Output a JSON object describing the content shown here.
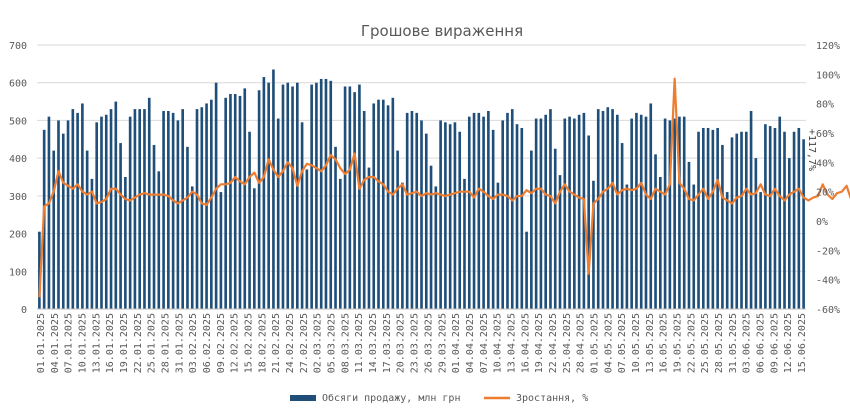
{
  "chart_data": {
    "type": "bar+line",
    "title": "Грошове  вираження",
    "x_tick_labels": [
      "01.01.2025",
      "04.01.2025",
      "07.01.2025",
      "10.01.2025",
      "13.01.2025",
      "16.01.2025",
      "19.01.2025",
      "22.01.2025",
      "25.01.2025",
      "28.01.2025",
      "31.01.2025",
      "03.02.2025",
      "06.02.2025",
      "09.02.2025",
      "12.02.2025",
      "15.02.2025",
      "18.02.2025",
      "21.02.2025",
      "24.02.2025",
      "27.02.2025",
      "02.03.2025",
      "05.03.2025",
      "08.03.2025",
      "11.03.2025",
      "14.03.2025",
      "17.03.2025",
      "20.03.2025",
      "23.03.2025",
      "26.03.2025",
      "29.03.2025",
      "01.04.2025",
      "04.04.2025",
      "07.04.2025",
      "10.04.2025",
      "13.04.2025",
      "16.04.2025",
      "19.04.2025",
      "22.04.2025",
      "25.04.2025",
      "28.04.2025",
      "01.05.2025",
      "04.05.2025",
      "07.05.2025",
      "10.05.2025",
      "13.05.2025",
      "16.05.2025",
      "19.05.2025",
      "22.05.2025",
      "25.05.2025",
      "28.05.2025",
      "31.05.2025",
      "03.06.2025",
      "06.06.2025",
      "09.06.2025",
      "12.06.2025",
      "15.06.2025"
    ],
    "y_left": {
      "min": 0,
      "max": 700,
      "step": 100,
      "ticks": [
        "0",
        "100",
        "200",
        "300",
        "400",
        "500",
        "600",
        "700"
      ]
    },
    "y_right": {
      "min": -60,
      "max": 120,
      "step": 20,
      "ticks": [
        "-60%",
        "-40%",
        "-20%",
        "0%",
        "20%",
        "40%",
        "60%",
        "80%",
        "100%",
        "120%"
      ]
    },
    "series": [
      {
        "name": "Обсяги  продажу,  млн  грн",
        "kind": "bar",
        "color": "#1f4e79",
        "values": [
          205,
          475,
          510,
          420,
          500,
          465,
          500,
          530,
          520,
          545,
          420,
          345,
          495,
          510,
          515,
          530,
          550,
          440,
          350,
          510,
          530,
          530,
          530,
          560,
          435,
          365,
          525,
          525,
          520,
          500,
          530,
          430,
          325,
          530,
          535,
          545,
          555,
          600,
          310,
          560,
          570,
          570,
          565,
          585,
          470,
          320,
          580,
          615,
          600,
          635,
          505,
          595,
          600,
          590,
          600,
          495,
          370,
          595,
          600,
          610,
          610,
          605,
          430,
          345,
          590,
          590,
          575,
          595,
          525,
          375,
          545,
          555,
          555,
          540,
          560,
          420,
          335,
          520,
          525,
          520,
          500,
          465,
          380,
          325,
          500,
          495,
          490,
          495,
          470,
          345,
          510,
          520,
          520,
          510,
          525,
          475,
          335,
          500,
          520,
          530,
          490,
          480,
          205,
          420,
          505,
          505,
          515,
          530,
          425,
          355,
          505,
          510,
          505,
          515,
          520,
          460,
          340,
          530,
          525,
          535,
          530,
          515,
          440,
          330,
          505,
          520,
          515,
          510,
          545,
          410,
          350,
          505,
          500,
          505,
          510,
          510,
          390,
          330,
          470,
          480,
          480,
          475,
          480,
          435,
          310,
          455,
          465,
          470,
          470,
          525,
          400,
          310,
          490,
          485,
          480,
          510,
          470,
          400,
          470,
          480,
          450
        ]
      },
      {
        "name": "Зростання,  %",
        "kind": "line",
        "color": "#ed7d31",
        "values": [
          -52,
          10,
          12,
          20,
          34,
          26,
          24,
          22,
          25,
          20,
          18,
          20,
          12,
          13,
          15,
          22,
          22,
          18,
          15,
          14,
          16,
          18,
          19,
          18,
          18,
          18,
          18,
          17,
          14,
          12,
          14,
          16,
          20,
          18,
          12,
          11,
          16,
          22,
          25,
          25,
          26,
          30,
          27,
          25,
          30,
          33,
          26,
          30,
          42,
          35,
          30,
          34,
          40,
          36,
          24,
          34,
          39,
          38,
          36,
          34,
          38,
          45,
          42,
          36,
          32,
          35,
          46,
          22,
          28,
          30,
          30,
          27,
          25,
          20,
          18,
          22,
          25,
          18,
          19,
          20,
          17,
          19,
          18,
          19,
          18,
          17,
          18,
          19,
          20,
          20,
          20,
          16,
          22,
          20,
          17,
          15,
          18,
          18,
          17,
          14,
          17,
          17,
          21,
          19,
          22,
          22,
          18,
          17,
          12,
          20,
          25,
          20,
          18,
          16,
          15,
          -36,
          12,
          15,
          20,
          22,
          26,
          18,
          21,
          22,
          21,
          22,
          26,
          18,
          15,
          22,
          20,
          18,
          25,
          97,
          26,
          22,
          15,
          14,
          18,
          22,
          15,
          20,
          28,
          16,
          14,
          12,
          16,
          17,
          22,
          18,
          19,
          25,
          18,
          17,
          22,
          17,
          14,
          18,
          20,
          22,
          16,
          14,
          16,
          17,
          25,
          18,
          15,
          19,
          20,
          24,
          14,
          15,
          20,
          19,
          22,
          20,
          18,
          17
        ]
      }
    ],
    "annotations": [
      {
        "text": "+117,7%"
      }
    ],
    "legend_position": "bottom"
  }
}
